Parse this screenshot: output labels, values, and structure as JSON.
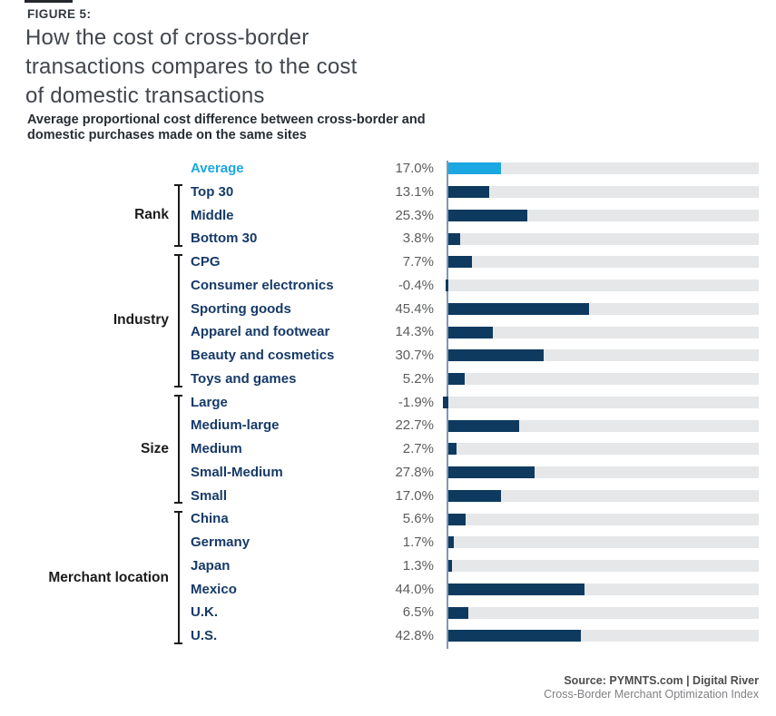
{
  "figure": {
    "label": "FIGURE 5:"
  },
  "header": {
    "title_lines": [
      "How the cost of cross-border",
      "transactions compares to the cost",
      "of domestic transactions"
    ],
    "subtitle_lines": [
      "Average proportional cost difference between cross-border and",
      "domestic purchases made on the same sites"
    ]
  },
  "chart_data": {
    "type": "bar",
    "orientation": "horizontal",
    "unit": "percent",
    "axis_range": [
      0,
      100
    ],
    "grid": false,
    "legend": "none",
    "title": "Average proportional cost difference between cross-border and domestic purchases made on the same sites",
    "groups": [
      {
        "label": "",
        "rows": [
          {
            "label": "Average",
            "value": 17.0,
            "value_label": "17.0%",
            "highlight": true
          }
        ]
      },
      {
        "label": "Rank",
        "rows": [
          {
            "label": "Top 30",
            "value": 13.1,
            "value_label": "13.1%"
          },
          {
            "label": "Middle",
            "value": 25.3,
            "value_label": "25.3%"
          },
          {
            "label": "Bottom 30",
            "value": 3.8,
            "value_label": "3.8%"
          }
        ]
      },
      {
        "label": "Industry",
        "rows": [
          {
            "label": "CPG",
            "value": 7.7,
            "value_label": "7.7%"
          },
          {
            "label": "Consumer electronics",
            "value": -0.4,
            "value_label": "-0.4%"
          },
          {
            "label": "Sporting goods",
            "value": 45.4,
            "value_label": "45.4%"
          },
          {
            "label": "Apparel and footwear",
            "value": 14.3,
            "value_label": "14.3%"
          },
          {
            "label": "Beauty and cosmetics",
            "value": 30.7,
            "value_label": "30.7%"
          },
          {
            "label": "Toys and games",
            "value": 5.2,
            "value_label": "5.2%"
          }
        ]
      },
      {
        "label": "Size",
        "rows": [
          {
            "label": "Large",
            "value": -1.9,
            "value_label": "-1.9%"
          },
          {
            "label": "Medium-large",
            "value": 22.7,
            "value_label": "22.7%"
          },
          {
            "label": "Medium",
            "value": 2.7,
            "value_label": "2.7%"
          },
          {
            "label": "Small-Medium",
            "value": 27.8,
            "value_label": "27.8%"
          },
          {
            "label": "Small",
            "value": 17.0,
            "value_label": "17.0%"
          }
        ]
      },
      {
        "label": "Merchant location",
        "rows": [
          {
            "label": "China",
            "value": 5.6,
            "value_label": "5.6%"
          },
          {
            "label": "Germany",
            "value": 1.7,
            "value_label": "1.7%"
          },
          {
            "label": "Japan",
            "value": 1.3,
            "value_label": "1.3%"
          },
          {
            "label": "Mexico",
            "value": 44.0,
            "value_label": "44.0%"
          },
          {
            "label": "U.K.",
            "value": 6.5,
            "value_label": "6.5%"
          },
          {
            "label": "U.S.",
            "value": 42.8,
            "value_label": "42.8%"
          }
        ]
      }
    ]
  },
  "colors": {
    "accent_blue": "#1BA7E1",
    "bar_navy": "#0E3A5F",
    "track_gray": "#E6E7E8",
    "axis_steel": "#7E99B2",
    "category_navy": "#163A68",
    "value_gray": "#5B5C5E",
    "group_black": "#1B1B1B"
  },
  "footer": {
    "source_line": "Source: PYMNTS.com  |  Digital River",
    "index_line": "Cross-Border Merchant Optimization Index"
  }
}
